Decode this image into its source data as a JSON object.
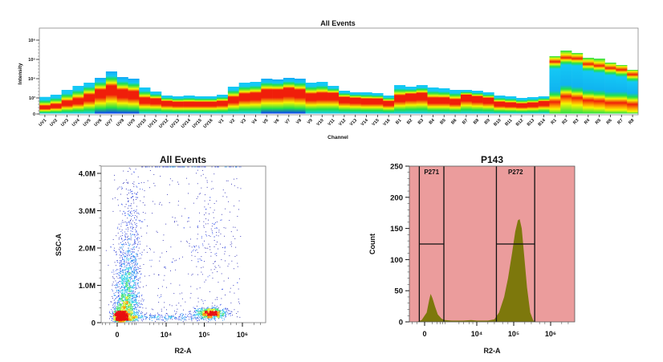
{
  "chart_data": [
    {
      "type": "heatmap",
      "title": "All Events",
      "xlabel": "Channel",
      "ylabel": "Intensity",
      "y_scale": "biexponential",
      "y_ticks": [
        {
          "v": 0,
          "label": "0"
        },
        {
          "v": 1000,
          "label": "10³"
        },
        {
          "v": 10000,
          "label": "10⁴"
        },
        {
          "v": 100000,
          "label": "10⁵"
        },
        {
          "v": 1000000,
          "label": "10⁶"
        }
      ],
      "colormap": [
        "#0a3cff",
        "#14c8f5",
        "#22e04a",
        "#f5f500",
        "#ff9a00",
        "#f01e0a"
      ],
      "channels": [
        "UV1",
        "UV2",
        "UV3",
        "UV4",
        "UV5",
        "UV6",
        "UV7",
        "UV8",
        "UV9",
        "UV10",
        "UV11",
        "UV12",
        "UV13",
        "UV14",
        "UV15",
        "UV16",
        "V1",
        "V2",
        "V3",
        "V4",
        "V5",
        "V6",
        "V7",
        "V8",
        "V9",
        "V10",
        "V11",
        "V12",
        "V13",
        "V14",
        "V15",
        "V16",
        "B1",
        "B2",
        "B3",
        "B4",
        "B5",
        "B6",
        "B7",
        "B8",
        "B9",
        "B10",
        "B11",
        "B12",
        "B13",
        "B14",
        "R1",
        "R2",
        "R3",
        "R4",
        "R5",
        "R6",
        "R7",
        "R8"
      ],
      "max_intensity": [
        1130,
        1470,
        2610,
        4220,
        6190,
        11000,
        23700,
        12100,
        10000,
        3480,
        2150,
        1330,
        1210,
        1330,
        1210,
        1210,
        1470,
        3830,
        6190,
        6810,
        10000,
        9090,
        11000,
        10000,
        6190,
        6810,
        4220,
        2370,
        1960,
        1960,
        1780,
        1330,
        4640,
        3830,
        4640,
        3480,
        3160,
        2610,
        2610,
        2370,
        1960,
        1330,
        1210,
        1000,
        1100,
        1210,
        147000,
        287000,
        215000,
        121000,
        110000,
        68100,
        51100,
        28700
      ],
      "median_intensity": [
        203,
        302,
        563,
        810,
        1330,
        2370,
        3830,
        2370,
        1960,
        903,
        810,
        563,
        490,
        490,
        490,
        490,
        563,
        1000,
        1470,
        1620,
        2370,
        2370,
        2870,
        2370,
        1470,
        1620,
        1620,
        1000,
        903,
        810,
        810,
        563,
        1210,
        1470,
        1620,
        903,
        903,
        723,
        1330,
        1100,
        903,
        490,
        423,
        360,
        423,
        563,
        563,
        1210,
        1000,
        723,
        640,
        490,
        490,
        360
      ],
      "bright_population_intensity": [
        null,
        null,
        null,
        null,
        null,
        null,
        null,
        null,
        null,
        null,
        null,
        null,
        null,
        null,
        null,
        null,
        null,
        null,
        null,
        null,
        null,
        null,
        null,
        null,
        null,
        null,
        null,
        null,
        null,
        null,
        null,
        null,
        null,
        null,
        null,
        null,
        null,
        null,
        null,
        null,
        null,
        null,
        null,
        null,
        null,
        null,
        75000,
        121000,
        110000,
        56200,
        46400,
        34800,
        28700,
        16200
      ]
    },
    {
      "type": "scatter",
      "title": "All Events",
      "xlabel": "R2-A",
      "ylabel": "SSC-A",
      "x_scale": "biexponential",
      "x_ticks": [
        {
          "v": 0,
          "label": "0"
        },
        {
          "v": 10000,
          "label": "10⁴"
        },
        {
          "v": 100000,
          "label": "10⁵"
        },
        {
          "v": 1000000,
          "label": "10⁶"
        }
      ],
      "y_ticks": [
        {
          "v": 0,
          "label": "0"
        },
        {
          "v": 1000000,
          "label": "1.0M"
        },
        {
          "v": 2000000,
          "label": "2.0M"
        },
        {
          "v": 3000000,
          "label": "3.0M"
        },
        {
          "v": 4000000,
          "label": "4.0M"
        }
      ],
      "ylim": [
        0,
        4200000
      ],
      "coloring": "density (blue → red)"
    },
    {
      "type": "area",
      "title": "P143",
      "xlabel": "R2-A",
      "ylabel": "Count",
      "x_scale": "biexponential",
      "ylim": [
        0,
        250
      ],
      "x_ticks": [
        {
          "v": 0,
          "label": "0"
        },
        {
          "v": 10000,
          "label": "10⁴"
        },
        {
          "v": 100000,
          "label": "10⁵"
        },
        {
          "v": 1000000,
          "label": "10⁶"
        }
      ],
      "y_ticks": [
        {
          "v": 0,
          "label": "0"
        },
        {
          "v": 50,
          "label": "50"
        },
        {
          "v": 100,
          "label": "100"
        },
        {
          "v": 150,
          "label": "150"
        },
        {
          "v": 200,
          "label": "200"
        },
        {
          "v": 250,
          "label": "250"
        }
      ],
      "fill_color": "#7d780c",
      "background_color": "#eb9c9c",
      "points": [
        [
          -100,
          0
        ],
        [
          -30,
          3
        ],
        [
          20,
          15
        ],
        [
          50,
          35
        ],
        [
          70,
          45
        ],
        [
          100,
          38
        ],
        [
          150,
          25
        ],
        [
          220,
          12
        ],
        [
          350,
          5
        ],
        [
          500,
          3
        ],
        [
          1000,
          2
        ],
        [
          3000,
          2
        ],
        [
          6000,
          3
        ],
        [
          10000,
          2
        ],
        [
          20000,
          2
        ],
        [
          30000,
          4
        ],
        [
          40000,
          15
        ],
        [
          55000,
          40
        ],
        [
          70000,
          70
        ],
        [
          90000,
          110
        ],
        [
          110000,
          145
        ],
        [
          130000,
          163
        ],
        [
          145000,
          165
        ],
        [
          165000,
          150
        ],
        [
          190000,
          110
        ],
        [
          230000,
          55
        ],
        [
          280000,
          15
        ],
        [
          340000,
          2
        ],
        [
          400000,
          0
        ]
      ],
      "gates": [
        {
          "name": "P271",
          "x_range": [
            -60,
            450
          ],
          "level": 125
        },
        {
          "name": "P272",
          "x_range": [
            34000,
            370000
          ],
          "level": 125
        }
      ]
    }
  ]
}
